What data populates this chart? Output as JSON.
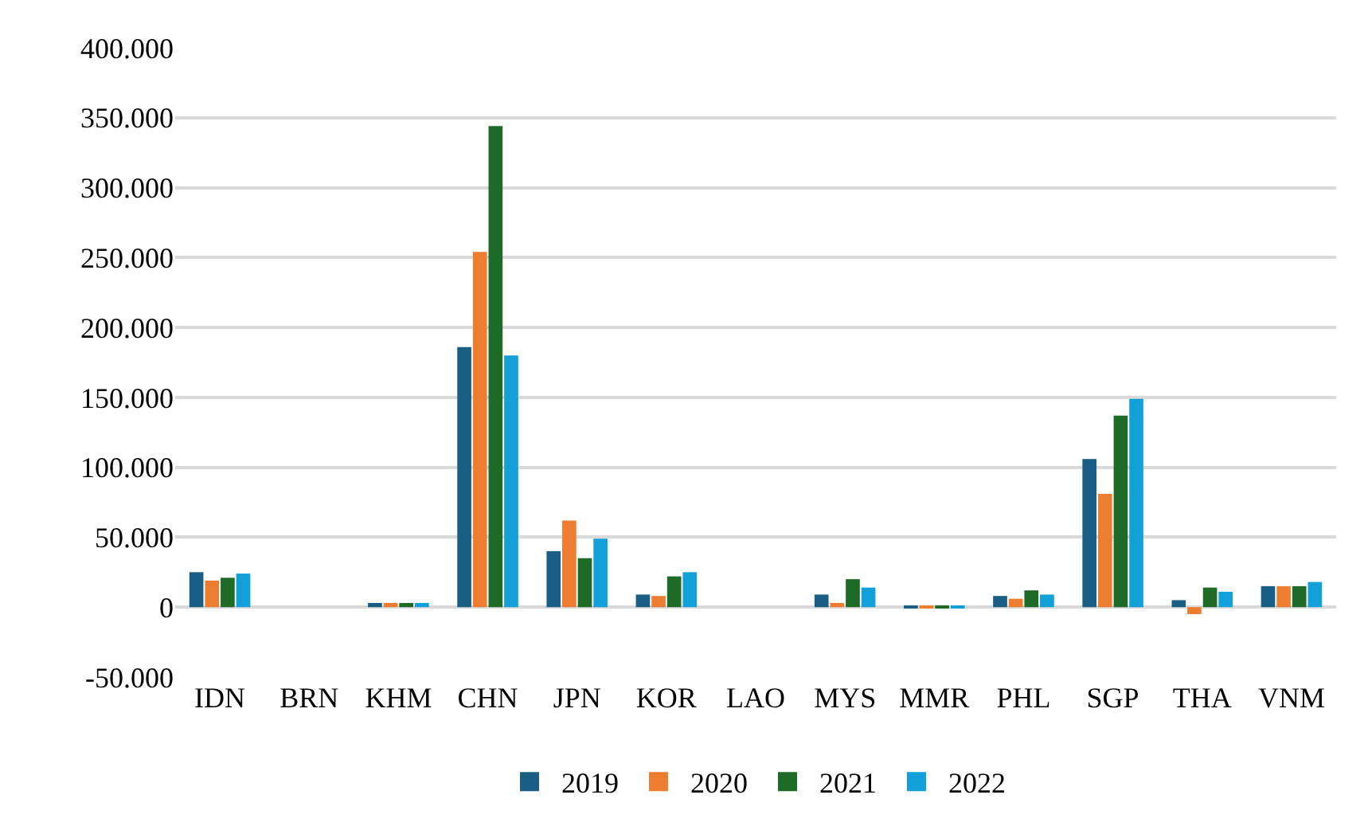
{
  "chart_data": {
    "type": "bar",
    "categories": [
      "IDN",
      "BRN",
      "KHM",
      "CHN",
      "JPN",
      "KOR",
      "LAO",
      "MYS",
      "MMR",
      "PHL",
      "SGP",
      "THA",
      "VNM"
    ],
    "series": [
      {
        "name": "2019",
        "color": "#1b5e85",
        "values": [
          25000,
          0,
          3000,
          186000,
          40000,
          9000,
          0,
          9000,
          1000,
          8000,
          106000,
          5000,
          15000
        ]
      },
      {
        "name": "2020",
        "color": "#ed7d31",
        "values": [
          19000,
          0,
          3000,
          254000,
          62000,
          8000,
          0,
          3000,
          1000,
          6000,
          81000,
          -5000,
          15000
        ]
      },
      {
        "name": "2021",
        "color": "#1e6b28",
        "values": [
          21000,
          0,
          3000,
          344000,
          35000,
          22000,
          0,
          20000,
          1000,
          12000,
          137000,
          14000,
          15000
        ]
      },
      {
        "name": "2022",
        "color": "#13a0d8",
        "values": [
          24000,
          0,
          3000,
          180000,
          49000,
          25000,
          0,
          14000,
          1000,
          9000,
          149000,
          11000,
          18000
        ]
      }
    ],
    "ylim": [
      -50000,
      400000
    ],
    "yticks": [
      {
        "value": -50000,
        "label": "-50.000"
      },
      0,
      {
        "value": 50000,
        "label": "50.000"
      },
      {
        "value": 100000,
        "label": "100.000"
      },
      {
        "value": 150000,
        "label": "150.000"
      },
      {
        "value": 200000,
        "label": "200.000"
      },
      {
        "value": 250000,
        "label": "250.000"
      },
      {
        "value": 300000,
        "label": "300.000"
      },
      {
        "value": 350000,
        "label": "350.000"
      },
      {
        "value": 400000,
        "label": "400.000"
      }
    ],
    "grid": "y",
    "legend": "bottom"
  }
}
